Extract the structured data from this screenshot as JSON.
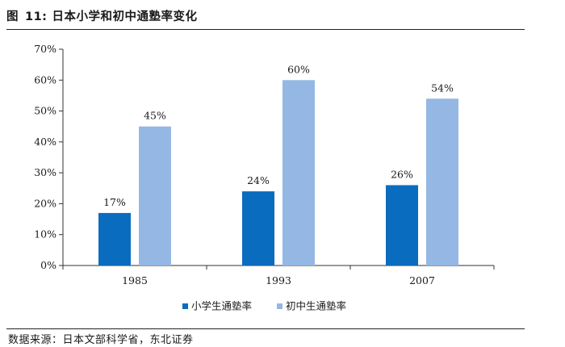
{
  "figure": {
    "label": "图",
    "number": "11:",
    "title": "日本小学和初中通塾率变化",
    "source": "数据来源：日本文部科学省，东北证券"
  },
  "chart_data": {
    "type": "bar",
    "title": "日本小学和初中通塾率变化",
    "categories": [
      "1985",
      "1993",
      "2007"
    ],
    "series": [
      {
        "name": "小学生通塾率",
        "color": "#0a6cbf",
        "values": [
          17,
          24,
          26
        ],
        "labels": [
          "17%",
          "24%",
          "26%"
        ]
      },
      {
        "name": "初中生通塾率",
        "color": "#94b8e3",
        "values": [
          45,
          60,
          54
        ],
        "labels": [
          "45%",
          "60%",
          "54%"
        ]
      }
    ],
    "ylim": [
      0,
      70
    ],
    "yticks": [
      "0%",
      "10%",
      "20%",
      "30%",
      "40%",
      "50%",
      "60%",
      "70%"
    ],
    "ytick_values": [
      0,
      10,
      20,
      30,
      40,
      50,
      60,
      70
    ],
    "xlabel": "",
    "ylabel": "",
    "grid": false,
    "legend_position": "bottom"
  }
}
